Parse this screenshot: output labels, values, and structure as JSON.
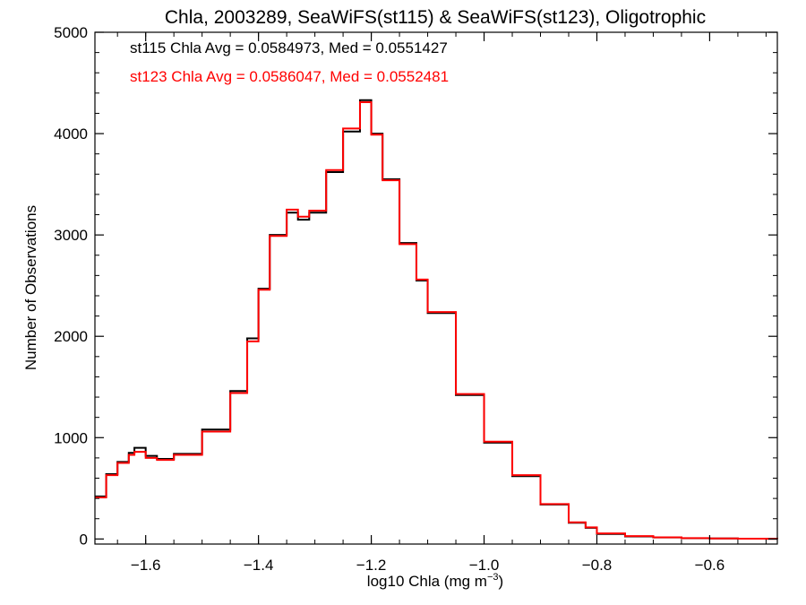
{
  "chart_data": {
    "type": "line",
    "title": "Chla, 2003289, SeaWiFS(st115) & SeaWiFS(st123), Oligotrophic",
    "xlabel_main": "log10 Chla (mg m",
    "xlabel_sup": "−3",
    "xlabel_close": ")",
    "ylabel": "Number of Observations",
    "xlim": [
      -1.69,
      -0.48
    ],
    "ylim": [
      -50,
      5000
    ],
    "x_ticks": [
      -1.6,
      -1.4,
      -1.2,
      -1.0,
      -0.8,
      -0.6
    ],
    "x_tick_labels": [
      "−1.6",
      "−1.4",
      "−1.2",
      "−1.0",
      "−0.8",
      "−0.6"
    ],
    "y_ticks": [
      0,
      1000,
      2000,
      3000,
      4000,
      5000
    ],
    "y_tick_labels": [
      "0",
      "1000",
      "2000",
      "3000",
      "4000",
      "5000"
    ],
    "annotations": [
      {
        "text": "st115 Chla Avg = 0.0584973, Med = 0.0551427",
        "color": "#000000"
      },
      {
        "text": "st123 Chla Avg = 0.0586047, Med = 0.0552481",
        "color": "#ff0000"
      }
    ],
    "series": [
      {
        "color": "#000000",
        "x": [
          -1.69,
          -1.67,
          -1.65,
          -1.63,
          -1.62,
          -1.6,
          -1.58,
          -1.55,
          -1.5,
          -1.45,
          -1.42,
          -1.4,
          -1.38,
          -1.35,
          -1.33,
          -1.31,
          -1.28,
          -1.25,
          -1.22,
          -1.2,
          -1.18,
          -1.15,
          -1.12,
          -1.1,
          -1.05,
          -1.0,
          -0.95,
          -0.9,
          -0.85,
          -0.82,
          -0.8,
          -0.75,
          -0.7,
          -0.65,
          -0.6,
          -0.55,
          -0.5,
          -0.48
        ],
        "y": [
          420,
          640,
          760,
          850,
          900,
          820,
          790,
          840,
          1080,
          1460,
          1980,
          2470,
          3000,
          3220,
          3150,
          3220,
          3620,
          4020,
          4330,
          4000,
          3550,
          2920,
          2550,
          2230,
          1420,
          950,
          620,
          340,
          160,
          110,
          50,
          25,
          15,
          8,
          5,
          3,
          2,
          1
        ]
      },
      {
        "color": "#ff0000",
        "x": [
          -1.69,
          -1.67,
          -1.65,
          -1.63,
          -1.62,
          -1.6,
          -1.58,
          -1.55,
          -1.5,
          -1.45,
          -1.42,
          -1.4,
          -1.38,
          -1.35,
          -1.33,
          -1.31,
          -1.28,
          -1.25,
          -1.22,
          -1.2,
          -1.18,
          -1.15,
          -1.12,
          -1.1,
          -1.05,
          -1.0,
          -0.95,
          -0.9,
          -0.85,
          -0.82,
          -0.8,
          -0.75,
          -0.7,
          -0.65,
          -0.6,
          -0.55,
          -0.5,
          -0.48
        ],
        "y": [
          410,
          630,
          750,
          830,
          860,
          800,
          780,
          830,
          1060,
          1440,
          1950,
          2460,
          2990,
          3250,
          3180,
          3240,
          3640,
          4050,
          4310,
          3990,
          3540,
          2910,
          2560,
          2240,
          1430,
          960,
          630,
          345,
          165,
          115,
          55,
          28,
          16,
          9,
          5,
          3,
          2,
          1
        ]
      }
    ]
  }
}
